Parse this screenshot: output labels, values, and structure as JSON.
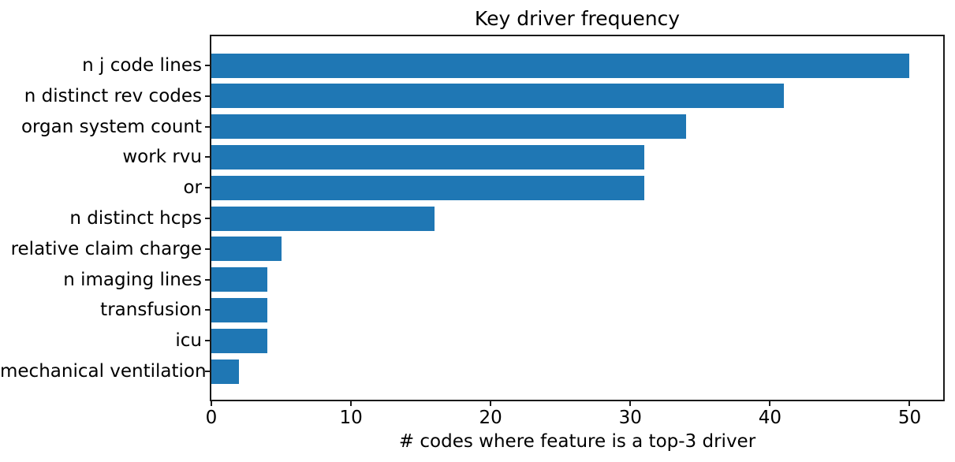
{
  "chart_data": {
    "type": "bar",
    "orientation": "horizontal",
    "title": "Key driver frequency",
    "xlabel": "# codes where feature is a top-3 driver",
    "ylabel": "",
    "categories": [
      "n j code lines",
      "n distinct rev codes",
      "organ system count",
      "work rvu",
      "or",
      "n distinct hcps",
      "relative claim charge",
      "n imaging lines",
      "transfusion",
      "icu",
      "mechanical ventilation"
    ],
    "values": [
      50,
      41,
      34,
      31,
      31,
      16,
      5,
      4,
      4,
      4,
      2
    ],
    "xticks": [
      0,
      10,
      20,
      30,
      40,
      50
    ],
    "xlim": [
      0,
      52.4
    ],
    "bar_color": "#1f77b4",
    "axis_color": "#1a1a1a",
    "text_color": "#000000",
    "background_color": "#ffffff",
    "grid": false,
    "legend_position": "none"
  }
}
